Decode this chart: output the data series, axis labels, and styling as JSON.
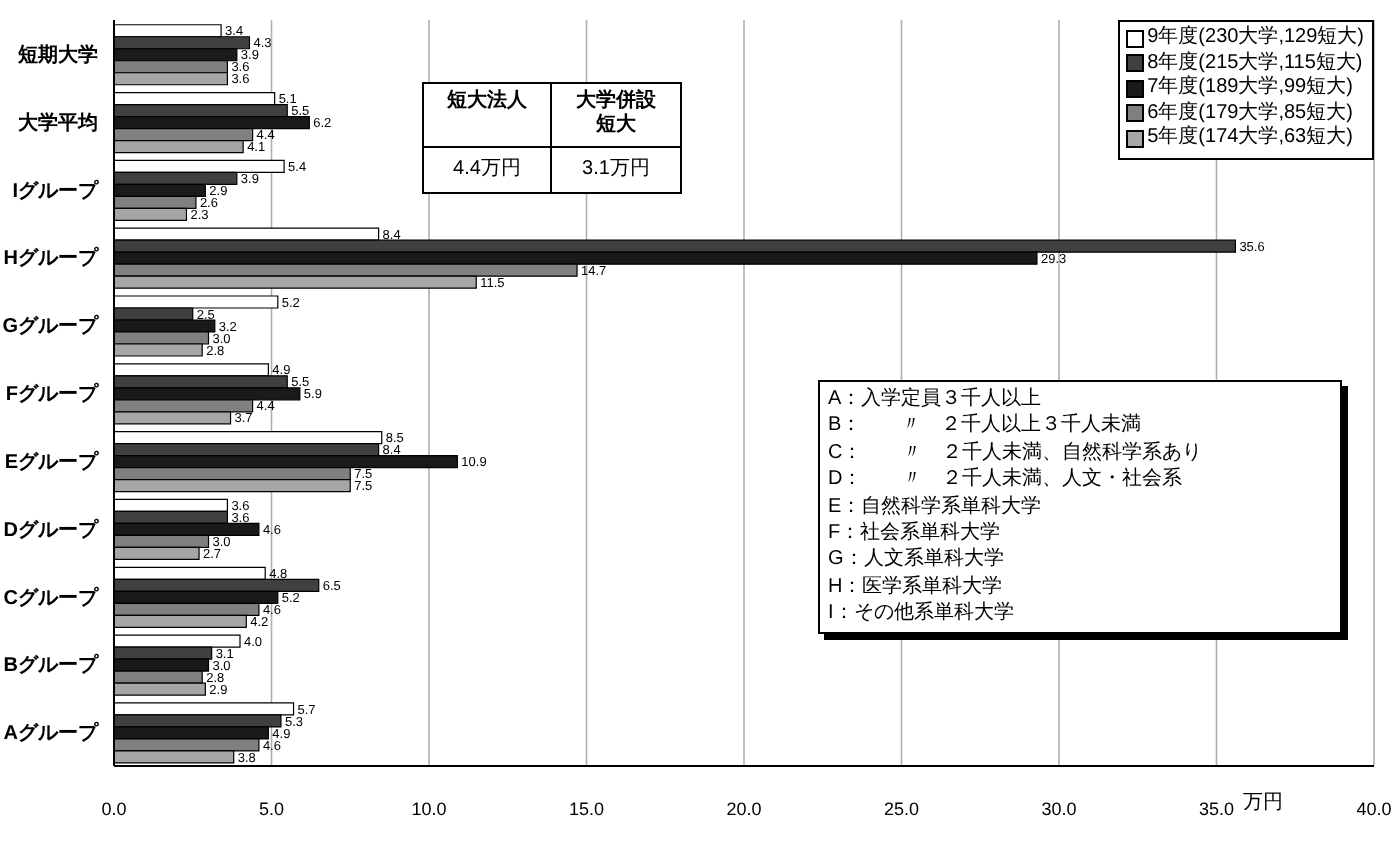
{
  "chart_data": {
    "type": "bar",
    "orientation": "horizontal",
    "categories": [
      "短期大学",
      "大学平均",
      "Iグループ",
      "Hグループ",
      "Gグループ",
      "Fグループ",
      "Eグループ",
      "Dグループ",
      "Cグループ",
      "Bグループ",
      "Aグループ"
    ],
    "series": [
      {
        "name": "9年度(230大学,129短大)",
        "color": "#ffffff",
        "values": [
          3.4,
          5.1,
          5.4,
          8.4,
          5.2,
          4.9,
          8.5,
          3.6,
          4.8,
          4.0,
          5.7
        ],
        "value_labels": [
          "3.4",
          "5.1",
          "5.4",
          "8.4",
          "5.2",
          "4.9",
          "8.5",
          "3.6",
          "4.8",
          "4.0",
          "5.7"
        ]
      },
      {
        "name": "8年度(215大学,115短大)",
        "color": "#404040",
        "values": [
          4.3,
          5.5,
          3.9,
          35.6,
          2.5,
          5.5,
          8.4,
          3.6,
          6.5,
          3.1,
          5.3
        ],
        "value_labels": [
          "4.3",
          "5.5",
          "3.9",
          "35.6",
          "2.5",
          "5.5",
          "8.4",
          "3.6",
          "6.5",
          "3.1",
          "5.3"
        ]
      },
      {
        "name": "7年度(189大学,99短大)",
        "color": "#1a1a1a",
        "values": [
          3.9,
          6.2,
          2.9,
          29.3,
          3.2,
          5.9,
          10.9,
          4.6,
          5.2,
          3.0,
          4.9
        ],
        "value_labels": [
          "3.9",
          "6.2",
          "2.9",
          "29.3",
          "3.2",
          "5.9",
          "10.9",
          "4.6",
          "5.2",
          "3.0",
          "4.9"
        ]
      },
      {
        "name": "6年度(179大学,85短大)",
        "color": "#808080",
        "values": [
          3.6,
          4.4,
          2.6,
          14.7,
          3.0,
          4.4,
          7.5,
          3.0,
          4.6,
          2.8,
          4.6
        ],
        "value_labels": [
          "3.6",
          "4.4",
          "2.6",
          "14.7",
          "3.0",
          "4.4",
          "7.5",
          "3.0",
          "4.6",
          "2.8",
          "4.6"
        ]
      },
      {
        "name": "5年度(174大学,63短大)",
        "color": "#a6a6a6",
        "values": [
          3.6,
          4.1,
          2.3,
          11.5,
          2.8,
          3.7,
          7.5,
          2.7,
          4.2,
          2.9,
          3.8
        ],
        "value_labels": [
          "3.6",
          "4.1",
          "2.3",
          "11.5",
          "2.8",
          "3.7",
          "7.5",
          "2.7",
          "4.2",
          "2.9",
          "3.8"
        ]
      }
    ],
    "xlim": [
      0,
      40
    ],
    "xticks": [
      {
        "value": 0,
        "label": "0.0"
      },
      {
        "value": 5,
        "label": "5.0"
      },
      {
        "value": 10,
        "label": "10.0"
      },
      {
        "value": 15,
        "label": "15.0"
      },
      {
        "value": 20,
        "label": "20.0"
      },
      {
        "value": 25,
        "label": "25.0"
      },
      {
        "value": 30,
        "label": "30.0"
      },
      {
        "value": 35,
        "label": "35.0"
      },
      {
        "value": 40,
        "label": "40.0"
      }
    ],
    "xlabel": "万円",
    "grid": "x",
    "legend": "top right",
    "annotations": [
      "短大法人",
      "大学併設短大",
      "4.4万円",
      "3.1万円",
      "A：入学定員３千人以上",
      "B：　　〃　２千人以上３千人未満",
      "C：　　〃　２千人未満、自然科学系あり",
      "D：　　〃　２千人未満、人文・社会系",
      "E：自然科学系単科大学",
      "F：社会系単科大学",
      "G：人文系単科大学",
      "H：医学系単科大学",
      "I：その他系単科大学"
    ]
  }
}
